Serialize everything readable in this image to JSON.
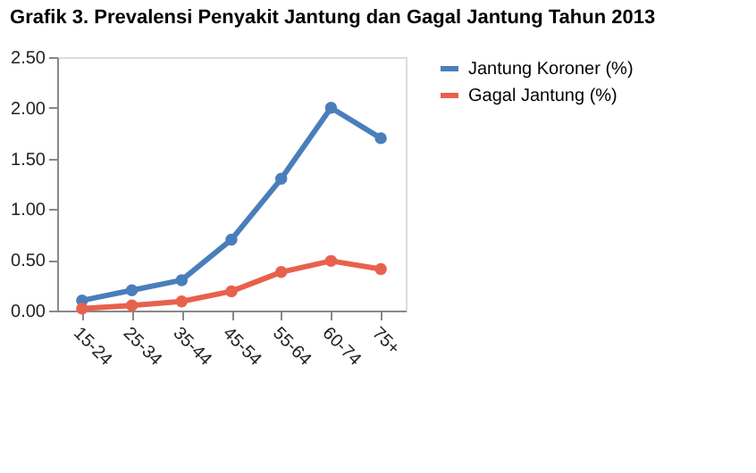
{
  "chart_data": {
    "type": "line",
    "title": "Grafik 3.   Prevalensi Penyakit Jantung dan Gagal Jantung Tahun 2013",
    "categories": [
      "15-24",
      "25-34",
      "35-44",
      "45-54",
      "55-64",
      "60-74",
      "75+"
    ],
    "series": [
      {
        "name": "Jantung Koroner (%)",
        "color": "#4a7ebb",
        "values": [
          0.1,
          0.2,
          0.3,
          0.7,
          1.3,
          2.0,
          1.7
        ]
      },
      {
        "name": "Gagal Jantung (%)",
        "color": "#e8614d",
        "values": [
          0.02,
          0.05,
          0.09,
          0.19,
          0.38,
          0.49,
          0.41
        ]
      }
    ],
    "ylim": [
      0,
      2.5
    ],
    "yticks": [
      {
        "value": 0,
        "label": "0.00"
      },
      {
        "value": 0.5,
        "label": "0.50"
      },
      {
        "value": 1,
        "label": "1.00"
      },
      {
        "value": 1.5,
        "label": "1.50"
      },
      {
        "value": 2,
        "label": "2.00"
      },
      {
        "value": 2.5,
        "label": "2.50"
      }
    ],
    "grid": false,
    "legend": "right",
    "marker": "circle",
    "line_style": "solid"
  }
}
